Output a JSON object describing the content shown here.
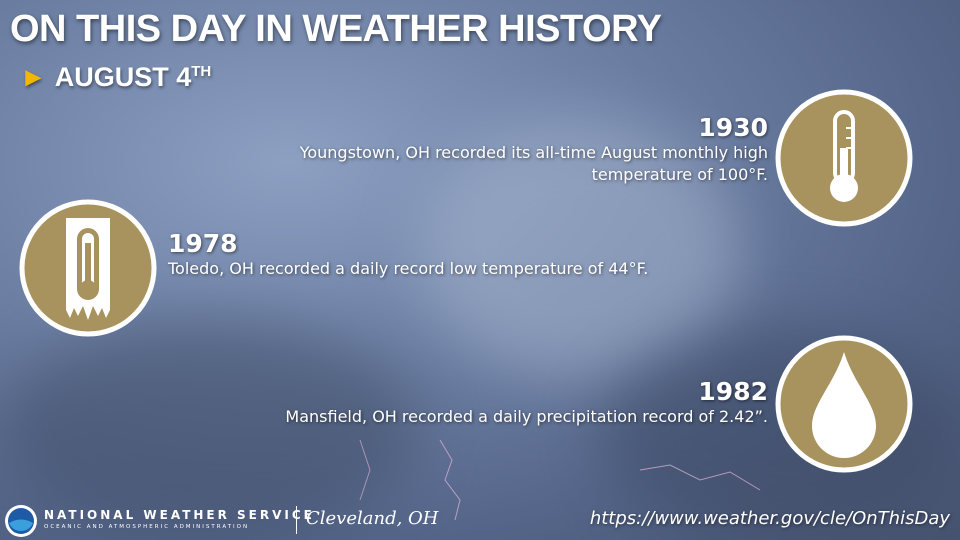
{
  "header": {
    "title": "ON THIS DAY IN WEATHER HISTORY",
    "date": "AUGUST 4",
    "date_suffix": "TH"
  },
  "events": [
    {
      "year": "1930",
      "text": "Youngstown, OH recorded its all-time August monthly high temperature of 100°F."
    },
    {
      "year": "1978",
      "text": "Toledo, OH recorded a daily record low temperature of 44°F."
    },
    {
      "year": "1982",
      "text": "Mansfield, OH recorded a daily precipitation record of 2.42”."
    }
  ],
  "footer": {
    "agency": "NATIONAL WEATHER SERVICE",
    "agency_sub": "OCEANIC AND ATMOSPHERIC ADMINISTRATION",
    "office": "Cleveland, OH",
    "url": "https://www.weather.gov/cle/OnThisDay"
  }
}
